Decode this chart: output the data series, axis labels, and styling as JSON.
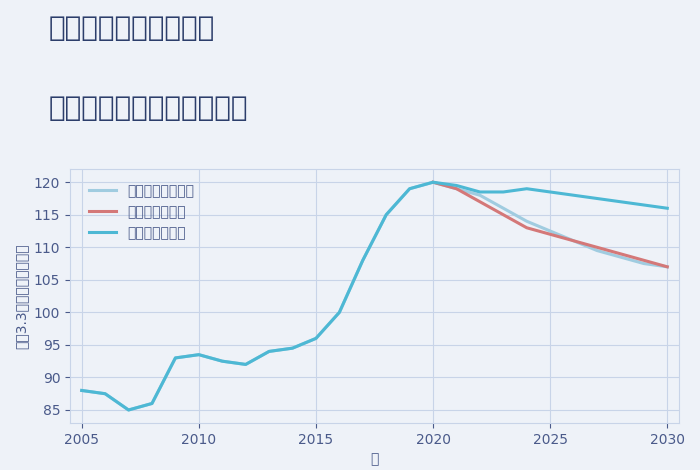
{
  "title_line1": "兵庫県姫路市紺屋町の",
  "title_line2": "中古マンションの価格推移",
  "xlabel": "年",
  "ylabel": "平（3.3㎡）単価（万円）",
  "background_color": "#eef2f8",
  "plot_bg_color": "#eef2f8",
  "grid_color": "#c8d4e8",
  "ylim": [
    83,
    122
  ],
  "xlim": [
    2004.5,
    2030.5
  ],
  "xticks": [
    2005,
    2010,
    2015,
    2020,
    2025,
    2030
  ],
  "yticks": [
    85,
    90,
    95,
    100,
    105,
    110,
    115,
    120
  ],
  "good_scenario": {
    "label": "グッドシナリオ",
    "color": "#4db8d4",
    "linewidth": 2.2,
    "x": [
      2005,
      2006,
      2007,
      2008,
      2009,
      2010,
      2011,
      2012,
      2013,
      2014,
      2015,
      2016,
      2017,
      2018,
      2019,
      2020,
      2021,
      2022,
      2023,
      2024,
      2025,
      2026,
      2027,
      2028,
      2029,
      2030
    ],
    "y": [
      88,
      87.5,
      85,
      86,
      93,
      93.5,
      92.5,
      92,
      94,
      94.5,
      96,
      100,
      108,
      115,
      119,
      120,
      119.5,
      118.5,
      118.5,
      119,
      118.5,
      118,
      117.5,
      117,
      116.5,
      116
    ]
  },
  "bad_scenario": {
    "label": "バッドシナリオ",
    "color": "#d47878",
    "linewidth": 2.2,
    "x": [
      2020,
      2021,
      2022,
      2023,
      2024,
      2025,
      2026,
      2027,
      2028,
      2029,
      2030
    ],
    "y": [
      120,
      119,
      117,
      115,
      113,
      112,
      111,
      110,
      109,
      108,
      107
    ]
  },
  "normal_scenario": {
    "label": "ノーマルシナリオ",
    "color": "#a0cce0",
    "linewidth": 2.2,
    "x": [
      2005,
      2006,
      2007,
      2008,
      2009,
      2010,
      2011,
      2012,
      2013,
      2014,
      2015,
      2016,
      2017,
      2018,
      2019,
      2020,
      2021,
      2022,
      2023,
      2024,
      2025,
      2026,
      2027,
      2028,
      2029,
      2030
    ],
    "y": [
      88,
      87.5,
      85,
      86,
      93,
      93.5,
      92.5,
      92,
      94,
      94.5,
      96,
      100,
      108,
      115,
      119,
      120,
      119,
      118,
      116,
      114,
      112.5,
      111,
      109.5,
      108.5,
      107.5,
      107
    ]
  },
  "title_fontsize": 20,
  "axis_label_fontsize": 10,
  "tick_fontsize": 10,
  "legend_fontsize": 10,
  "title_color": "#2c3e6b",
  "axis_color": "#4a5a8a",
  "tick_color": "#4a5a8a"
}
